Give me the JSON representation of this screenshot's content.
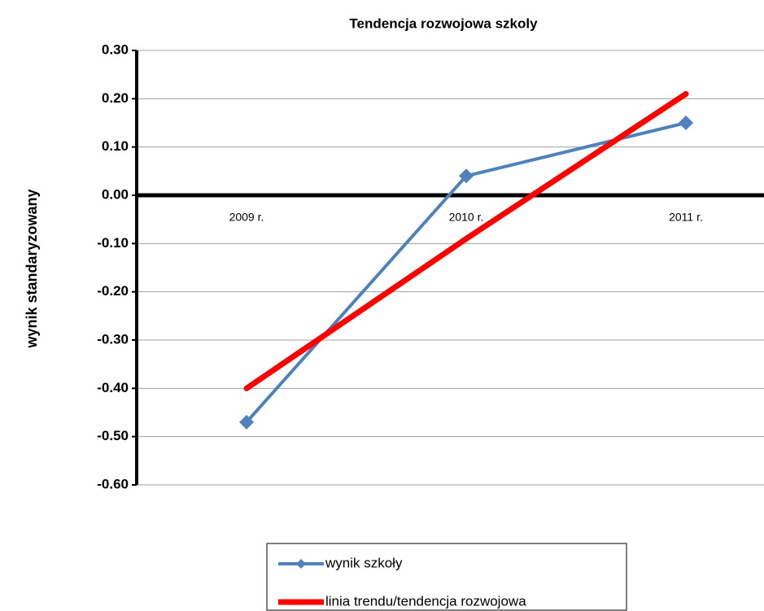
{
  "chart_data": {
    "type": "line",
    "title": "Tendencja rozwojowa szkoly",
    "y_label": "wynik standaryzowany",
    "categories": [
      "2009 r.",
      "2010 r.",
      "2011 r."
    ],
    "series": [
      {
        "name": "wynik szkoły",
        "color": "#4f81bd",
        "marker": "diamond",
        "values": [
          -0.47,
          0.04,
          0.15
        ]
      },
      {
        "name": "linia trendu/tendencja rozwojowa",
        "color": "#ff0000",
        "values": [
          -0.4,
          -0.09,
          0.21
        ]
      }
    ],
    "ylim": [
      -0.6,
      0.3
    ],
    "yticks": [
      {
        "value": -0.6,
        "label": "-0.60"
      },
      {
        "value": -0.5,
        "label": "-0.50"
      },
      {
        "value": -0.4,
        "label": "-0.40"
      },
      {
        "value": -0.3,
        "label": "-0.30"
      },
      {
        "value": -0.2,
        "label": "-0.20"
      },
      {
        "value": -0.1,
        "label": "-0.10"
      },
      {
        "value": 0,
        "label": "0.00"
      },
      {
        "value": 0.1,
        "label": "0.10"
      },
      {
        "value": 0.2,
        "label": "0.20"
      },
      {
        "value": 0.3,
        "label": "0.30"
      }
    ],
    "grid": true,
    "legend": "bottom"
  }
}
